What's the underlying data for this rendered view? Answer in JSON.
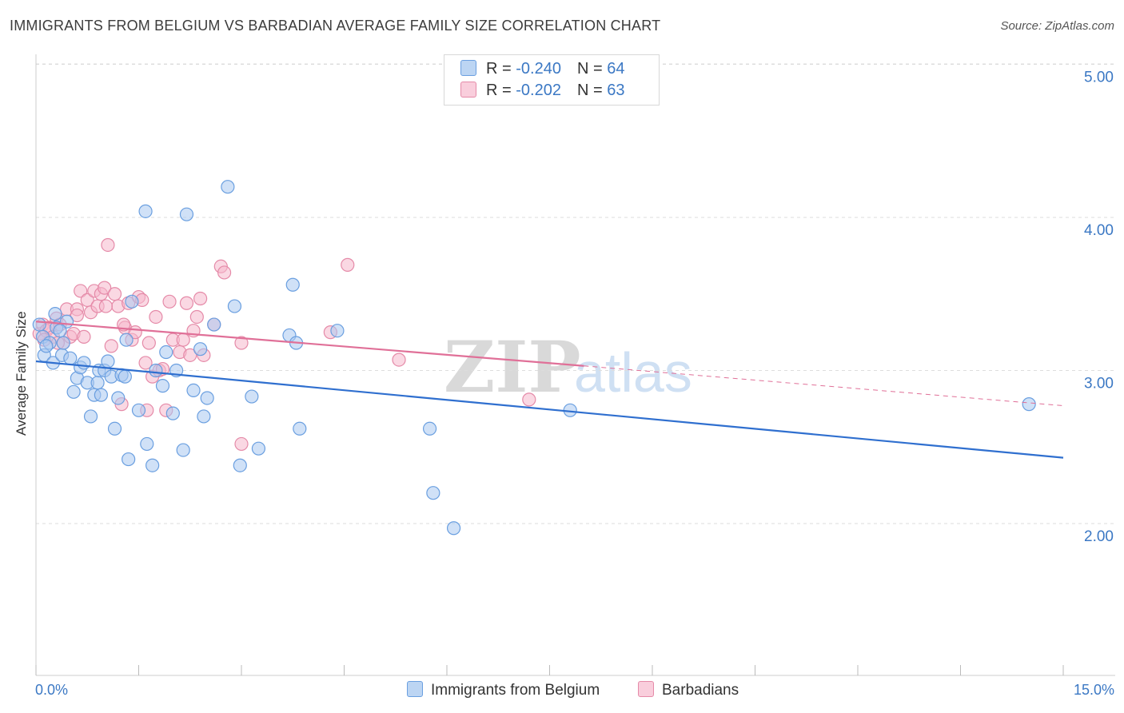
{
  "title": "IMMIGRANTS FROM BELGIUM VS BARBADIAN AVERAGE FAMILY SIZE CORRELATION CHART",
  "source": "Source: ZipAtlas.com",
  "watermark": {
    "zip": "ZIP",
    "atlas": "atlas"
  },
  "colors": {
    "belgium_fill": "#a9c8f0",
    "belgium_stroke": "#6a9fe0",
    "belgium_line": "#2f6fcf",
    "barbados_fill": "#f6b8cc",
    "barbados_stroke": "#e58aa8",
    "barbados_line": "#e07098",
    "axis_text": "#3b78c4",
    "grid": "#dddddd"
  },
  "legend": {
    "rows": [
      {
        "r_label": "R = ",
        "r_value": "-0.240",
        "n_label": "N = ",
        "n_value": "64"
      },
      {
        "r_label": "R = ",
        "r_value": "-0.202",
        "n_label": "N = ",
        "n_value": "63"
      }
    ]
  },
  "bottom_legend": [
    "Immigrants from Belgium",
    "Barbadians"
  ],
  "x_axis": {
    "min_label": "0.0%",
    "max_label": "15.0%"
  },
  "chart_data": {
    "type": "scatter",
    "title": "IMMIGRANTS FROM BELGIUM VS BARBADIAN AVERAGE FAMILY SIZE CORRELATION CHART",
    "xlabel": "",
    "ylabel": "Average Family Size",
    "xlim": [
      0,
      15
    ],
    "ylim": [
      1,
      5.1
    ],
    "yticks": [
      2,
      3,
      4,
      5
    ],
    "ytick_labels": [
      "2.00",
      "3.00",
      "4.00",
      "5.00"
    ],
    "grid": true,
    "legend_position": "top-center",
    "series": [
      {
        "name": "Immigrants from Belgium",
        "trend": {
          "x": [
            0,
            15
          ],
          "y": [
            3.06,
            2.43
          ]
        },
        "points": [
          [
            0.05,
            3.3
          ],
          [
            0.1,
            3.22
          ],
          [
            0.12,
            3.1
          ],
          [
            0.2,
            3.18
          ],
          [
            0.25,
            3.05
          ],
          [
            0.28,
            3.37
          ],
          [
            0.3,
            3.28
          ],
          [
            0.38,
            3.1
          ],
          [
            0.4,
            3.18
          ],
          [
            0.5,
            3.08
          ],
          [
            0.55,
            2.86
          ],
          [
            0.6,
            2.95
          ],
          [
            0.65,
            3.02
          ],
          [
            0.7,
            3.05
          ],
          [
            0.75,
            2.92
          ],
          [
            0.8,
            2.7
          ],
          [
            0.85,
            2.84
          ],
          [
            0.9,
            2.92
          ],
          [
            0.92,
            3.0
          ],
          [
            0.95,
            2.84
          ],
          [
            1.0,
            3.0
          ],
          [
            1.05,
            3.06
          ],
          [
            1.1,
            2.96
          ],
          [
            1.15,
            2.62
          ],
          [
            1.2,
            2.82
          ],
          [
            1.25,
            2.97
          ],
          [
            1.3,
            2.96
          ],
          [
            1.32,
            3.2
          ],
          [
            1.35,
            2.42
          ],
          [
            1.4,
            3.45
          ],
          [
            1.5,
            2.74
          ],
          [
            1.6,
            4.04
          ],
          [
            1.62,
            2.52
          ],
          [
            1.7,
            2.38
          ],
          [
            1.85,
            2.9
          ],
          [
            1.9,
            3.12
          ],
          [
            2.0,
            2.72
          ],
          [
            2.15,
            2.48
          ],
          [
            2.2,
            4.02
          ],
          [
            2.3,
            2.87
          ],
          [
            2.4,
            3.14
          ],
          [
            2.45,
            2.7
          ],
          [
            2.5,
            2.82
          ],
          [
            2.6,
            3.3
          ],
          [
            2.8,
            4.2
          ],
          [
            2.9,
            3.42
          ],
          [
            2.98,
            2.38
          ],
          [
            3.15,
            2.83
          ],
          [
            3.25,
            2.49
          ],
          [
            3.75,
            3.56
          ],
          [
            3.7,
            3.23
          ],
          [
            3.8,
            3.18
          ],
          [
            3.85,
            2.62
          ],
          [
            4.4,
            3.26
          ],
          [
            5.75,
            2.62
          ],
          [
            5.8,
            2.2
          ],
          [
            6.1,
            1.97
          ],
          [
            7.8,
            2.74
          ],
          [
            14.5,
            2.78
          ],
          [
            0.15,
            3.16
          ],
          [
            0.45,
            3.32
          ],
          [
            1.75,
            3.0
          ],
          [
            2.05,
            3.0
          ],
          [
            0.35,
            3.26
          ]
        ]
      },
      {
        "name": "Barbadians",
        "trend": {
          "x": [
            0,
            8.0,
            15
          ],
          "y": [
            3.32,
            3.03,
            2.77
          ],
          "solid_until": 8.0
        },
        "points": [
          [
            0.05,
            3.24
          ],
          [
            0.1,
            3.3
          ],
          [
            0.15,
            3.26
          ],
          [
            0.2,
            3.28
          ],
          [
            0.25,
            3.22
          ],
          [
            0.3,
            3.34
          ],
          [
            0.35,
            3.3
          ],
          [
            0.4,
            3.18
          ],
          [
            0.45,
            3.4
          ],
          [
            0.5,
            3.22
          ],
          [
            0.55,
            3.24
          ],
          [
            0.6,
            3.4
          ],
          [
            0.65,
            3.52
          ],
          [
            0.7,
            3.22
          ],
          [
            0.75,
            3.46
          ],
          [
            0.8,
            3.38
          ],
          [
            0.85,
            3.52
          ],
          [
            0.9,
            3.42
          ],
          [
            0.95,
            3.5
          ],
          [
            1.0,
            3.54
          ],
          [
            1.05,
            3.82
          ],
          [
            1.1,
            3.16
          ],
          [
            1.15,
            3.5
          ],
          [
            1.2,
            3.42
          ],
          [
            1.25,
            2.78
          ],
          [
            1.3,
            3.28
          ],
          [
            1.35,
            3.44
          ],
          [
            1.4,
            3.2
          ],
          [
            1.45,
            3.25
          ],
          [
            1.5,
            3.48
          ],
          [
            1.55,
            3.46
          ],
          [
            1.6,
            3.05
          ],
          [
            1.65,
            3.18
          ],
          [
            1.7,
            2.96
          ],
          [
            1.75,
            3.35
          ],
          [
            1.8,
            3.0
          ],
          [
            1.85,
            3.01
          ],
          [
            1.9,
            2.74
          ],
          [
            2.0,
            3.2
          ],
          [
            2.1,
            3.12
          ],
          [
            2.15,
            3.2
          ],
          [
            2.2,
            3.44
          ],
          [
            2.3,
            3.26
          ],
          [
            2.35,
            3.35
          ],
          [
            2.4,
            3.47
          ],
          [
            2.45,
            3.1
          ],
          [
            2.6,
            3.3
          ],
          [
            2.7,
            3.68
          ],
          [
            2.75,
            3.64
          ],
          [
            3.0,
            3.18
          ],
          [
            3.0,
            2.52
          ],
          [
            4.3,
            3.25
          ],
          [
            4.55,
            3.69
          ],
          [
            5.3,
            3.07
          ],
          [
            7.2,
            2.81
          ],
          [
            0.12,
            3.2
          ],
          [
            0.32,
            3.18
          ],
          [
            0.6,
            3.36
          ],
          [
            1.02,
            3.42
          ],
          [
            1.28,
            3.3
          ],
          [
            1.62,
            2.74
          ],
          [
            1.95,
            3.45
          ],
          [
            2.25,
            3.1
          ]
        ]
      }
    ]
  }
}
